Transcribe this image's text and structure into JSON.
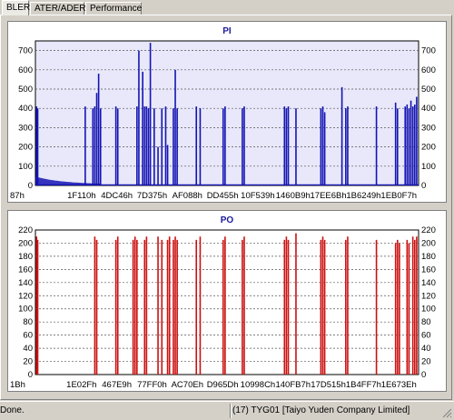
{
  "tabs": [
    {
      "label": "BLER",
      "active": true
    },
    {
      "label": "ATER/ADER",
      "active": false
    },
    {
      "label": "Performance",
      "active": false
    }
  ],
  "colors": {
    "pi_bar": "#1414b4",
    "po_bar": "#cc1111",
    "pi_bg": "#e8e8fa",
    "po_bg": "#ffffff"
  },
  "status": {
    "left": "Done.",
    "right": "(17) TYG01 [Taiyo Yuden Company Limited]"
  },
  "chart_data": [
    {
      "type": "bar",
      "title": "PI",
      "ylim": [
        0,
        750
      ],
      "yticks": [
        0,
        100,
        200,
        300,
        400,
        500,
        600,
        700
      ],
      "xticks": [
        "87h",
        "1F110h",
        "4DC46h",
        "7D375h",
        "AF088h",
        "DD455h",
        "10F539h",
        "1460B9h",
        "17EE6Bh",
        "1B6249h",
        "1EB0F7h"
      ],
      "grid": true,
      "spikes": [
        {
          "x": 0.003,
          "value": 410
        },
        {
          "x": 0.006,
          "value": 400
        },
        {
          "x": 0.13,
          "value": 410
        },
        {
          "x": 0.15,
          "value": 400
        },
        {
          "x": 0.155,
          "value": 410
        },
        {
          "x": 0.16,
          "value": 480
        },
        {
          "x": 0.165,
          "value": 580
        },
        {
          "x": 0.17,
          "value": 400
        },
        {
          "x": 0.21,
          "value": 410
        },
        {
          "x": 0.215,
          "value": 400
        },
        {
          "x": 0.265,
          "value": 410
        },
        {
          "x": 0.27,
          "value": 700
        },
        {
          "x": 0.28,
          "value": 590
        },
        {
          "x": 0.285,
          "value": 410
        },
        {
          "x": 0.29,
          "value": 410
        },
        {
          "x": 0.295,
          "value": 400
        },
        {
          "x": 0.3,
          "value": 740
        },
        {
          "x": 0.31,
          "value": 400
        },
        {
          "x": 0.32,
          "value": 200
        },
        {
          "x": 0.33,
          "value": 400
        },
        {
          "x": 0.34,
          "value": 410
        },
        {
          "x": 0.345,
          "value": 210
        },
        {
          "x": 0.36,
          "value": 400
        },
        {
          "x": 0.365,
          "value": 600
        },
        {
          "x": 0.37,
          "value": 400
        },
        {
          "x": 0.42,
          "value": 410
        },
        {
          "x": 0.43,
          "value": 400
        },
        {
          "x": 0.49,
          "value": 400
        },
        {
          "x": 0.495,
          "value": 410
        },
        {
          "x": 0.54,
          "value": 400
        },
        {
          "x": 0.545,
          "value": 410
        },
        {
          "x": 0.65,
          "value": 410
        },
        {
          "x": 0.655,
          "value": 400
        },
        {
          "x": 0.66,
          "value": 410
        },
        {
          "x": 0.68,
          "value": 400
        },
        {
          "x": 0.745,
          "value": 400
        },
        {
          "x": 0.75,
          "value": 410
        },
        {
          "x": 0.755,
          "value": 380
        },
        {
          "x": 0.8,
          "value": 510
        },
        {
          "x": 0.81,
          "value": 400
        },
        {
          "x": 0.815,
          "value": 410
        },
        {
          "x": 0.89,
          "value": 410
        },
        {
          "x": 0.94,
          "value": 430
        },
        {
          "x": 0.945,
          "value": 400
        },
        {
          "x": 0.965,
          "value": 410
        },
        {
          "x": 0.97,
          "value": 420
        },
        {
          "x": 0.975,
          "value": 400
        },
        {
          "x": 0.98,
          "value": 440
        },
        {
          "x": 0.985,
          "value": 410
        },
        {
          "x": 0.99,
          "value": 420
        },
        {
          "x": 0.995,
          "value": 460
        }
      ]
    },
    {
      "type": "bar",
      "title": "PO",
      "ylim": [
        0,
        220
      ],
      "yticks": [
        0,
        20,
        40,
        60,
        80,
        100,
        120,
        140,
        160,
        180,
        200,
        220
      ],
      "xticks": [
        "1Bh",
        "1E02Fh",
        "467E9h",
        "77FF0h",
        "AC70Eh",
        "D965Dh",
        "10998Ch",
        "140FB7h",
        "17D515h",
        "1B4FF7h",
        "1E673Eh"
      ],
      "grid": true,
      "spikes": [
        {
          "x": 0.003,
          "value": 210
        },
        {
          "x": 0.006,
          "value": 205
        },
        {
          "x": 0.155,
          "value": 210
        },
        {
          "x": 0.16,
          "value": 205
        },
        {
          "x": 0.21,
          "value": 205
        },
        {
          "x": 0.215,
          "value": 210
        },
        {
          "x": 0.255,
          "value": 205
        },
        {
          "x": 0.26,
          "value": 210
        },
        {
          "x": 0.265,
          "value": 205
        },
        {
          "x": 0.285,
          "value": 205
        },
        {
          "x": 0.29,
          "value": 210
        },
        {
          "x": 0.32,
          "value": 210
        },
        {
          "x": 0.33,
          "value": 205
        },
        {
          "x": 0.345,
          "value": 205
        },
        {
          "x": 0.35,
          "value": 210
        },
        {
          "x": 0.36,
          "value": 205
        },
        {
          "x": 0.365,
          "value": 210
        },
        {
          "x": 0.37,
          "value": 205
        },
        {
          "x": 0.42,
          "value": 205
        },
        {
          "x": 0.43,
          "value": 210
        },
        {
          "x": 0.49,
          "value": 205
        },
        {
          "x": 0.495,
          "value": 210
        },
        {
          "x": 0.54,
          "value": 205
        },
        {
          "x": 0.545,
          "value": 210
        },
        {
          "x": 0.65,
          "value": 205
        },
        {
          "x": 0.655,
          "value": 210
        },
        {
          "x": 0.66,
          "value": 205
        },
        {
          "x": 0.68,
          "value": 215
        },
        {
          "x": 0.745,
          "value": 205
        },
        {
          "x": 0.75,
          "value": 210
        },
        {
          "x": 0.755,
          "value": 205
        },
        {
          "x": 0.81,
          "value": 205
        },
        {
          "x": 0.815,
          "value": 210
        },
        {
          "x": 0.89,
          "value": 205
        },
        {
          "x": 0.94,
          "value": 200
        },
        {
          "x": 0.945,
          "value": 205
        },
        {
          "x": 0.95,
          "value": 200
        },
        {
          "x": 0.97,
          "value": 205
        },
        {
          "x": 0.975,
          "value": 200
        },
        {
          "x": 0.985,
          "value": 210
        },
        {
          "x": 0.99,
          "value": 205
        },
        {
          "x": 0.995,
          "value": 210
        }
      ]
    }
  ]
}
